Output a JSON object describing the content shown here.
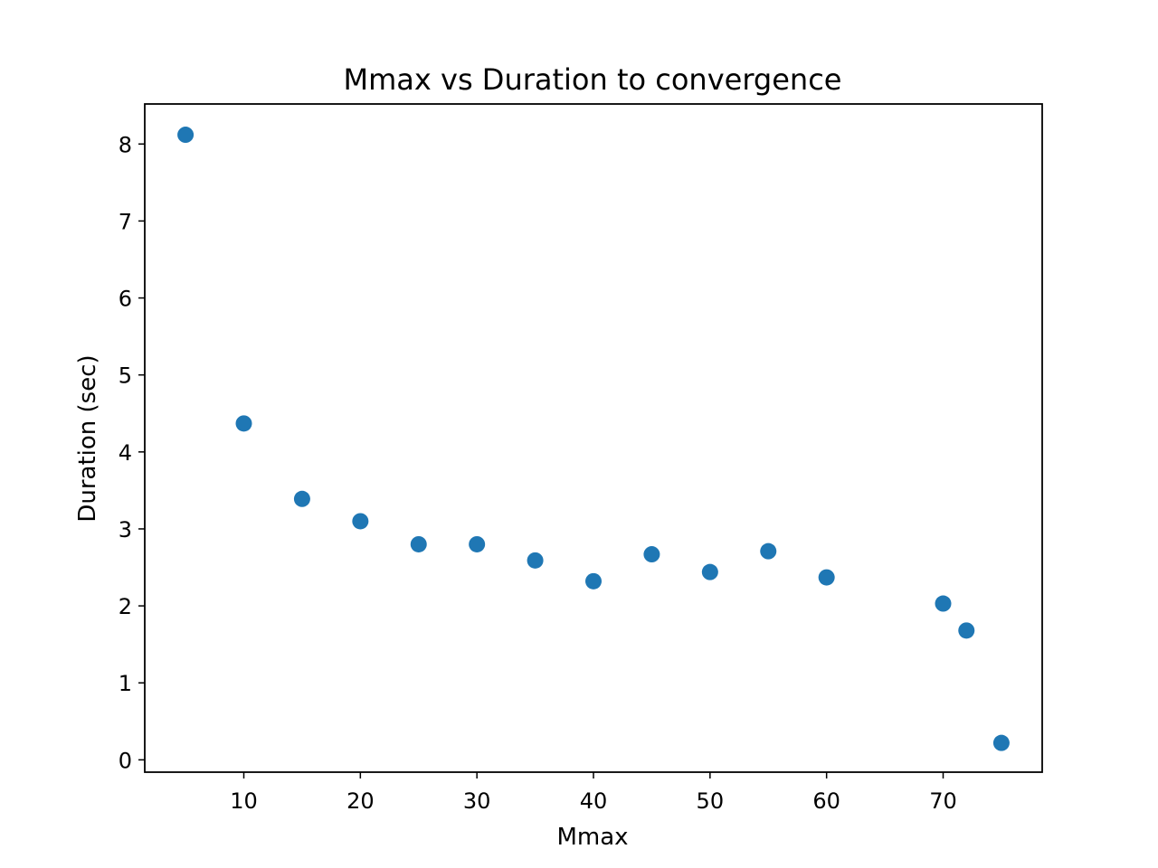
{
  "chart_data": {
    "type": "scatter",
    "title": "Mmax vs Duration to convergence",
    "xlabel": "Mmax",
    "ylabel": "Duration (sec)",
    "xlim": [
      1.5,
      78.5
    ],
    "ylim": [
      -0.16,
      8.52
    ],
    "xticks": [
      10,
      20,
      30,
      40,
      50,
      60,
      70
    ],
    "yticks": [
      0,
      1,
      2,
      3,
      4,
      5,
      6,
      7,
      8
    ],
    "grid": false,
    "marker_color": "#1f77b4",
    "series": [
      {
        "x": [
          5,
          10,
          15,
          20,
          25,
          30,
          35,
          40,
          45,
          50,
          55,
          60,
          70,
          72,
          75
        ],
        "y": [
          8.12,
          4.37,
          3.39,
          3.1,
          2.8,
          2.8,
          2.59,
          2.32,
          2.67,
          2.44,
          2.71,
          2.37,
          2.03,
          1.68,
          0.22
        ]
      }
    ]
  }
}
